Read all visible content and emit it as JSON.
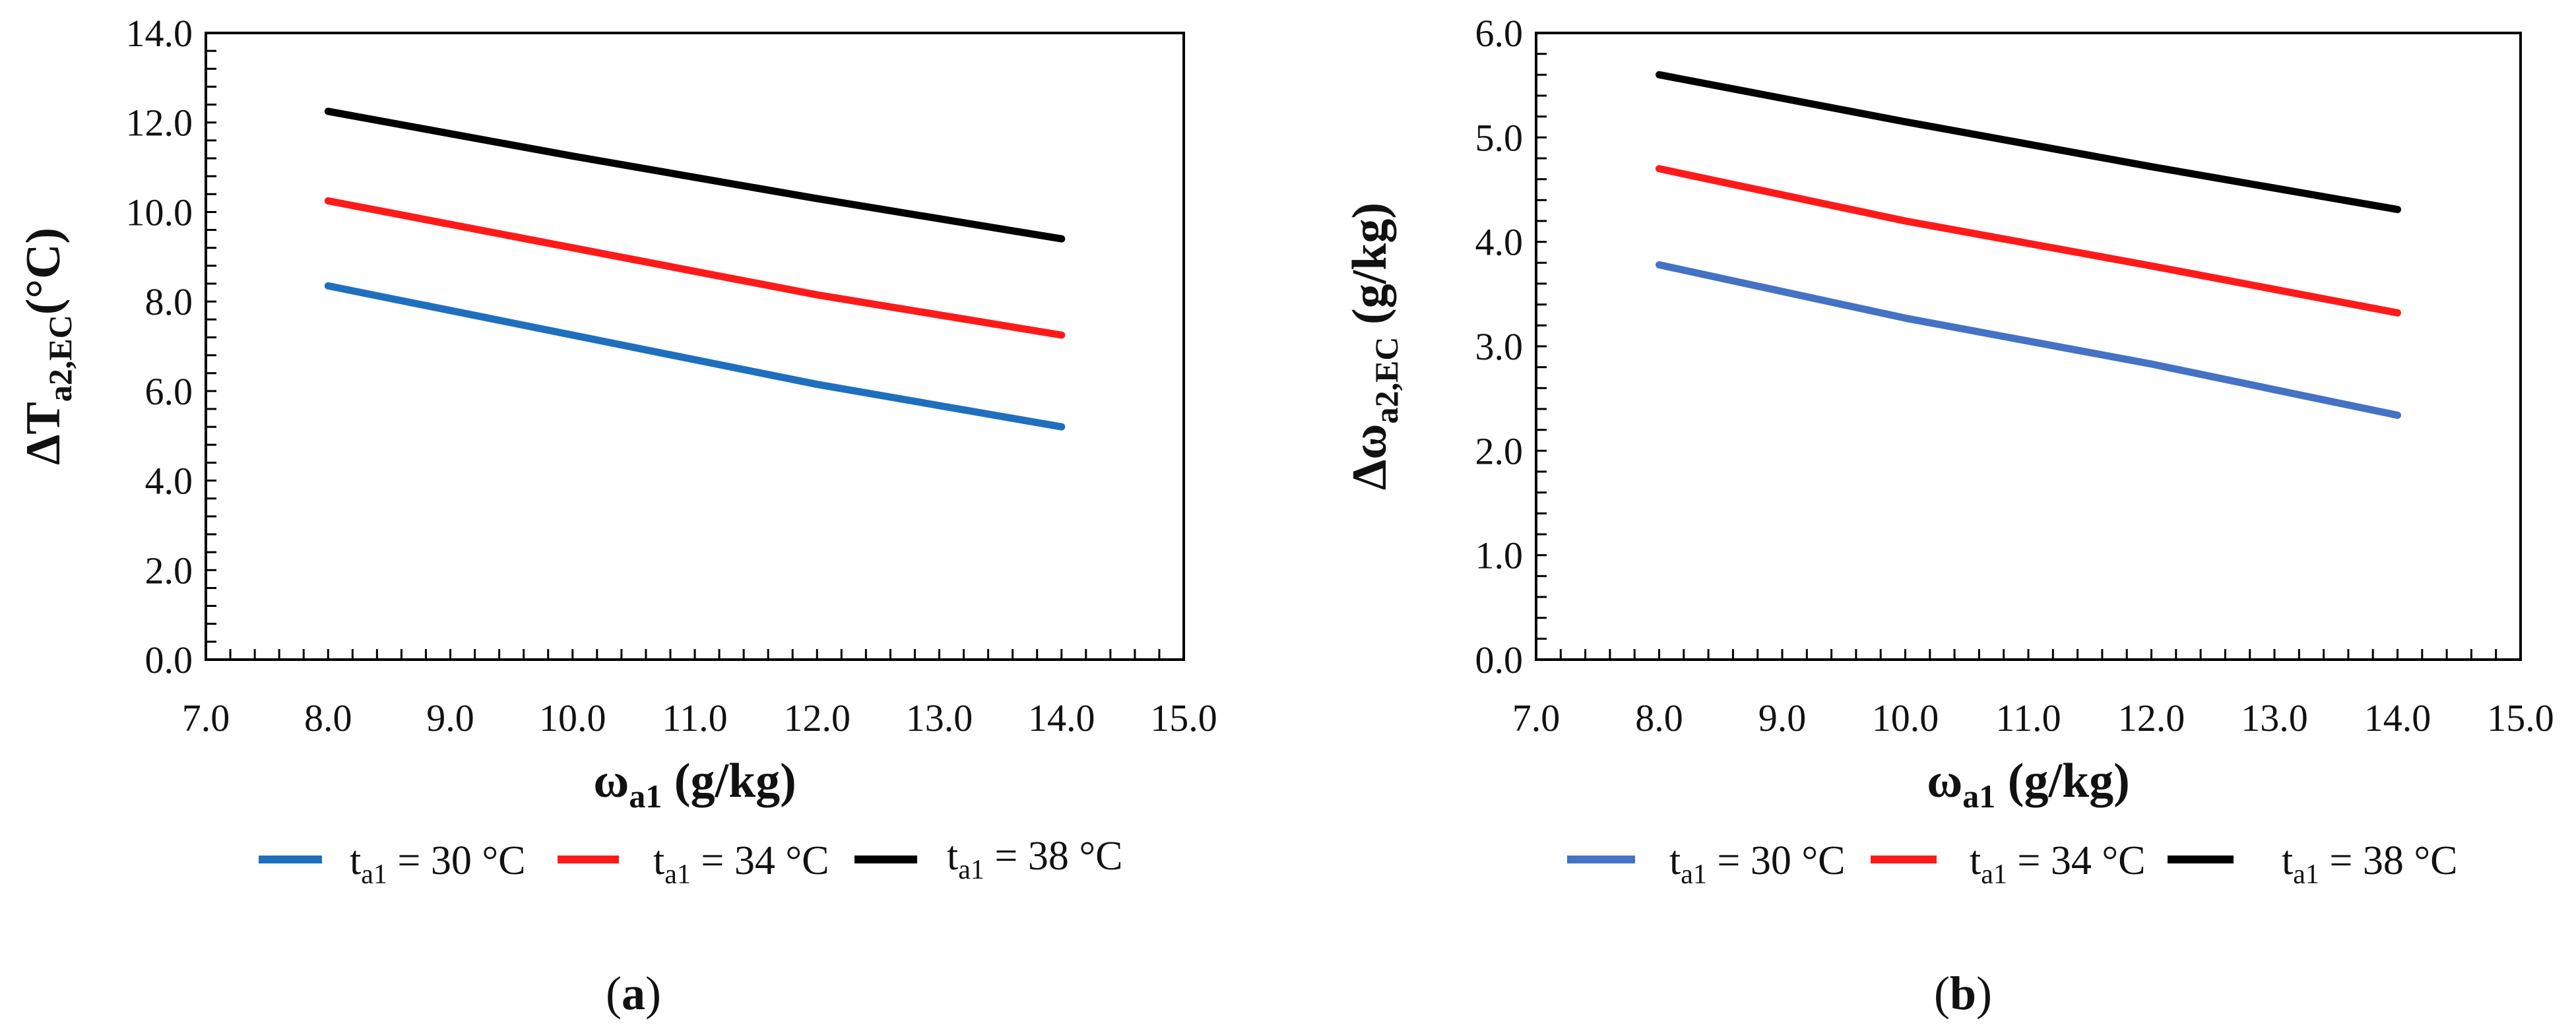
{
  "chart_data": [
    {
      "type": "line",
      "panel_label": "a",
      "ylabel": {
        "prefix": "ΔT",
        "sub": "a2,EC",
        "suffix": "(°C)"
      },
      "xlabel": {
        "prefix": "ω",
        "sub": "a1",
        "suffix": " (g/kg)"
      },
      "xlim": [
        7.0,
        15.0
      ],
      "ylim": [
        0.0,
        14.0
      ],
      "xticks": [
        "7.0",
        "8.0",
        "9.0",
        "10.0",
        "11.0",
        "12.0",
        "13.0",
        "14.0",
        "15.0"
      ],
      "yticks": [
        "0.0",
        "2.0",
        "4.0",
        "6.0",
        "8.0",
        "10.0",
        "12.0",
        "14.0"
      ],
      "grid": false,
      "legend_position": "bottom",
      "x": [
        8,
        10,
        12,
        14
      ],
      "series": [
        {
          "name": "t_a1 = 30 °C",
          "legend": {
            "prefix": "t",
            "sub": "a1",
            "suffix": " = 30 °C"
          },
          "color": "#1f6fbf",
          "values": [
            8.35,
            7.25,
            6.15,
            5.2
          ]
        },
        {
          "name": "t_a1 = 34 °C",
          "legend": {
            "prefix": "t",
            "sub": "a1",
            "suffix": " = 34 °C"
          },
          "color": "#ff1a1a",
          "values": [
            10.25,
            9.2,
            8.15,
            7.25
          ]
        },
        {
          "name": "t_a1 = 38 °C",
          "legend": {
            "prefix": "t",
            "sub": "a1",
            "suffix": " = 38 °C"
          },
          "color": "#000000",
          "values": [
            12.25,
            11.25,
            10.3,
            9.4
          ]
        }
      ]
    },
    {
      "type": "line",
      "panel_label": "b",
      "ylabel": {
        "prefix": "Δω",
        "sub": "a2,EC",
        "suffix": " (g/kg)"
      },
      "xlabel": {
        "prefix": "ω",
        "sub": "a1",
        "suffix": " (g/kg)"
      },
      "xlim": [
        7.0,
        15.0
      ],
      "ylim": [
        0.0,
        6.0
      ],
      "xticks": [
        "7.0",
        "8.0",
        "9.0",
        "10.0",
        "11.0",
        "12.0",
        "13.0",
        "14.0",
        "15.0"
      ],
      "yticks": [
        "0.0",
        "1.0",
        "2.0",
        "3.0",
        "4.0",
        "5.0",
        "6.0"
      ],
      "grid": false,
      "legend_position": "bottom",
      "x": [
        8,
        10,
        12,
        14
      ],
      "series": [
        {
          "name": "t_a1 = 30 °C",
          "legend": {
            "prefix": "t",
            "sub": "a1",
            "suffix": " = 30 °C"
          },
          "color": "#4472c4",
          "values": [
            3.78,
            3.27,
            2.83,
            2.34
          ]
        },
        {
          "name": "t_a1 = 34 °C",
          "legend": {
            "prefix": "t",
            "sub": "a1",
            "suffix": " = 34 °C"
          },
          "color": "#ff1a1a",
          "values": [
            4.7,
            4.2,
            3.77,
            3.32
          ]
        },
        {
          "name": "t_a1 = 38 °C",
          "legend": {
            "prefix": "t",
            "sub": "a1",
            "suffix": " = 38 °C"
          },
          "color": "#000000",
          "values": [
            5.6,
            5.15,
            4.72,
            4.31
          ]
        }
      ]
    }
  ]
}
